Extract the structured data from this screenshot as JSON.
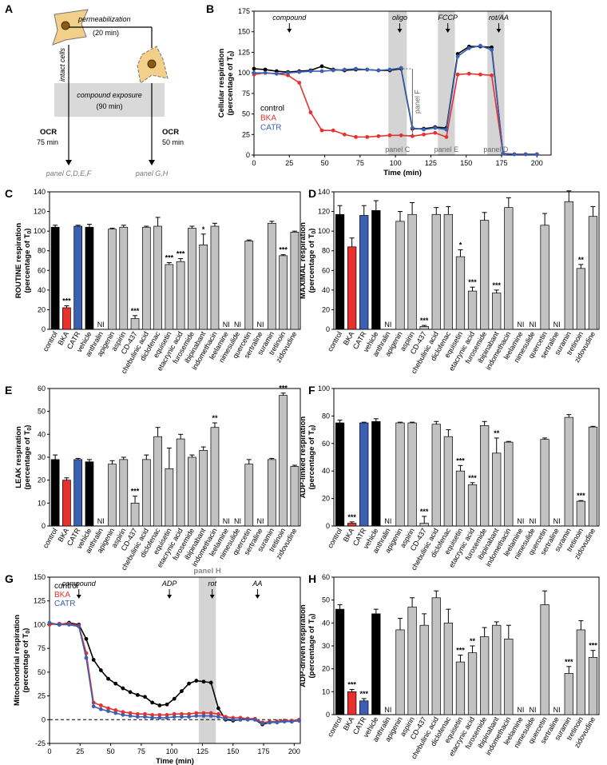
{
  "figure": {
    "panel_labels": [
      "A",
      "B",
      "C",
      "D",
      "E",
      "F",
      "G",
      "H"
    ],
    "units_sub": "0"
  },
  "diagram_A": {
    "permeabilization": "permeabilization",
    "perm_time": "(20 min)",
    "intact_cells": "intact cells",
    "compound_exposure": "compound exposure",
    "compound_time": "(90 min)",
    "ocr_left": "OCR",
    "ocr_left_time": "75 min",
    "ocr_right": "OCR",
    "ocr_right_time": "50 min",
    "panel_left": "panel C,D,E,F",
    "panel_right": "panel G,H"
  },
  "colors": {
    "control": "#000000",
    "BKA": "#e8312d",
    "CATR": "#3a5fb3",
    "vehicle": "#000000",
    "gray": "#c2c2c2",
    "shade": "#d4d4d4"
  },
  "categories": [
    "control",
    "BKA",
    "CATR",
    "vehicle",
    "anthralin",
    "apigenin",
    "aspirin",
    "CD-437",
    "chebulinic acid",
    "diclofenac",
    "equisetin",
    "etacrynic acid",
    "furosemide",
    "ibipinabant",
    "indomethacin",
    "leelamine",
    "nimesulide",
    "quercetin",
    "sertraline",
    "suramin",
    "tretinoin",
    "zidovudine"
  ],
  "chart_data": [
    {
      "panel": "B",
      "type": "line",
      "xlabel": "Time (min)",
      "ylabel": "Cellular respiration (percentage of T0)",
      "xlim": [
        0,
        210
      ],
      "ylim": [
        0,
        175
      ],
      "xticks": [
        0,
        25,
        50,
        75,
        100,
        125,
        150,
        175,
        200
      ],
      "yticks": [
        0,
        25,
        50,
        75,
        100,
        125,
        150,
        175
      ],
      "shaded": [
        [
          95,
          108
        ],
        [
          130,
          142
        ],
        [
          165,
          177
        ]
      ],
      "shade_labels": [
        "panel C",
        "panel E",
        "panel D"
      ],
      "events": [
        {
          "label": "compound",
          "x": 25
        },
        {
          "label": "oligo",
          "x": 103
        },
        {
          "label": "FCCP",
          "x": 137
        },
        {
          "label": "rot/AA",
          "x": 173
        }
      ],
      "bracket_label": "panel F",
      "dashed_y": 0,
      "legend": [
        "control",
        "BKA",
        "CATR"
      ],
      "series": [
        {
          "name": "control",
          "color": "#000000",
          "x": [
            0,
            8,
            16,
            24,
            32,
            40,
            48,
            56,
            64,
            72,
            80,
            88,
            96,
            104,
            112,
            120,
            128,
            136,
            144,
            152,
            160,
            168,
            176,
            184,
            192,
            200
          ],
          "y": [
            105,
            104,
            102,
            101,
            102,
            103,
            108,
            104,
            103,
            104,
            104,
            103,
            103,
            105,
            32,
            32,
            34,
            33,
            123,
            132,
            132,
            131,
            2,
            1,
            1,
            1
          ]
        },
        {
          "name": "BKA",
          "color": "#e8312d",
          "x": [
            0,
            8,
            16,
            24,
            32,
            40,
            48,
            56,
            64,
            72,
            80,
            88,
            96,
            104,
            112,
            120,
            128,
            136,
            144,
            152,
            160,
            168,
            176,
            184,
            192,
            200
          ],
          "y": [
            98,
            100,
            99,
            97,
            88,
            52,
            30,
            30,
            25,
            22,
            22,
            23,
            24,
            24,
            23,
            25,
            27,
            22,
            98,
            99,
            98,
            97,
            2,
            1,
            1,
            1
          ]
        },
        {
          "name": "CATR",
          "color": "#3a5fb3",
          "x": [
            0,
            8,
            16,
            24,
            32,
            40,
            48,
            56,
            64,
            72,
            80,
            88,
            96,
            104,
            112,
            120,
            128,
            136,
            144,
            152,
            160,
            168,
            176,
            184,
            192,
            200
          ],
          "y": [
            100,
            100,
            99,
            100,
            101,
            102,
            102,
            103,
            104,
            105,
            104,
            103,
            104,
            106,
            33,
            31,
            33,
            31,
            120,
            130,
            133,
            128,
            2,
            1,
            1,
            1
          ]
        }
      ]
    },
    {
      "panel": "C",
      "type": "bar",
      "ylabel": "ROUTINE respiration (percentage of T0)",
      "ylim": [
        0,
        140
      ],
      "yticks": [
        0,
        20,
        40,
        60,
        80,
        100,
        120,
        140
      ],
      "values": [
        104,
        22,
        105,
        104,
        null,
        102,
        104,
        11,
        104,
        105,
        66,
        69,
        103,
        86,
        105,
        null,
        null,
        90,
        null,
        108,
        75,
        99
      ],
      "errors": [
        2,
        2,
        1,
        3,
        0,
        1,
        2,
        3,
        1,
        9,
        2,
        3,
        2,
        11,
        3,
        0,
        0,
        1,
        0,
        2,
        1,
        1
      ],
      "stars": {
        "1": "***",
        "7": "***",
        "10": "***",
        "11": "***",
        "13": "*",
        "20": "***"
      }
    },
    {
      "panel": "D",
      "type": "bar",
      "ylabel": "MAXIMAL respiration (percentage of T0)",
      "ylim": [
        0,
        140
      ],
      "yticks": [
        0,
        20,
        40,
        60,
        80,
        100,
        120,
        140
      ],
      "values": [
        117,
        84,
        116,
        121,
        null,
        110,
        117,
        3,
        117,
        117,
        74,
        39,
        111,
        37,
        124,
        null,
        null,
        106,
        null,
        130,
        62,
        115
      ],
      "errors": [
        9,
        9,
        10,
        10,
        0,
        10,
        12,
        1,
        7,
        8,
        7,
        4,
        8,
        3,
        10,
        0,
        0,
        12,
        0,
        11,
        4,
        10
      ],
      "stars": {
        "7": "***",
        "10": "*",
        "11": "***",
        "13": "***",
        "20": "**"
      }
    },
    {
      "panel": "E",
      "type": "bar",
      "ylabel": "LEAK respiration (percentage of T0)",
      "ylim": [
        0,
        60
      ],
      "yticks": [
        0,
        10,
        20,
        30,
        40,
        50,
        60
      ],
      "values": [
        29,
        20,
        29,
        28,
        null,
        27,
        29,
        10,
        29,
        39,
        25,
        38,
        30,
        33,
        43,
        null,
        null,
        27,
        null,
        29,
        57,
        26
      ],
      "errors": [
        2,
        1,
        0.5,
        1,
        0,
        1.5,
        1,
        3,
        2,
        4,
        9,
        2,
        1,
        1.5,
        2,
        0,
        0,
        2,
        0,
        0.5,
        1,
        0.5
      ],
      "stars": {
        "7": "***",
        "14": "**",
        "20": "***"
      }
    },
    {
      "panel": "F",
      "type": "bar",
      "ylabel": "ADP-linked respiration (percentage of T0)",
      "ylim": [
        0,
        100
      ],
      "yticks": [
        0,
        20,
        40,
        60,
        80,
        100
      ],
      "values": [
        75,
        2,
        75,
        76,
        null,
        75,
        75,
        2,
        74,
        65,
        40,
        30,
        73,
        53,
        61,
        null,
        null,
        63,
        null,
        79,
        18,
        72
      ],
      "errors": [
        2,
        1,
        0.5,
        2,
        0,
        0.5,
        0.5,
        5,
        2,
        5,
        4,
        1.5,
        3,
        11,
        0.5,
        0,
        0,
        1,
        0,
        2,
        0.5,
        0.5
      ],
      "stars": {
        "1": "***",
        "7": "***",
        "10": "***",
        "11": "***",
        "13": "**",
        "20": "***"
      }
    },
    {
      "panel": "G",
      "type": "line",
      "xlabel": "Time (min)",
      "ylabel": "Mitochondrial respiration (percentage of T0)",
      "xlim": [
        0,
        205
      ],
      "ylim": [
        -25,
        150
      ],
      "xticks": [
        0,
        25,
        50,
        75,
        100,
        125,
        150,
        175,
        200
      ],
      "yticks": [
        -25,
        0,
        25,
        50,
        75,
        100,
        125,
        150
      ],
      "shaded": [
        [
          122,
          136
        ]
      ],
      "shade_labels": [
        "panel H"
      ],
      "events": [
        {
          "label": "compound",
          "x": 24
        },
        {
          "label": "ADP",
          "x": 98
        },
        {
          "label": "rot",
          "x": 133
        },
        {
          "label": "AA",
          "x": 170
        }
      ],
      "dashed_y": 0,
      "legend": [
        "control",
        "BKA",
        "CATR"
      ],
      "series": [
        {
          "name": "control",
          "color": "#000000",
          "x": [
            0,
            8,
            16,
            24,
            30,
            36,
            42,
            48,
            54,
            60,
            66,
            72,
            78,
            84,
            90,
            96,
            102,
            108,
            114,
            120,
            126,
            132,
            138,
            144,
            150,
            156,
            162,
            168,
            174,
            180,
            186,
            192,
            198,
            204
          ],
          "y": [
            101,
            100,
            102,
            100,
            85,
            63,
            52,
            43,
            38,
            33,
            29,
            26,
            24,
            18,
            15,
            16,
            22,
            30,
            38,
            41,
            40,
            39,
            12,
            0,
            -1,
            0,
            1,
            0,
            -5,
            -3,
            -2,
            -1,
            -2,
            -1
          ]
        },
        {
          "name": "BKA",
          "color": "#e8312d",
          "x": [
            0,
            8,
            16,
            24,
            30,
            36,
            42,
            48,
            54,
            60,
            66,
            72,
            78,
            84,
            90,
            96,
            102,
            108,
            114,
            120,
            126,
            132,
            138,
            144,
            150,
            156,
            162,
            168,
            174,
            180,
            186,
            192,
            198,
            204
          ],
          "y": [
            100,
            101,
            101,
            99,
            70,
            18,
            15,
            12,
            10,
            8,
            7,
            6,
            6,
            5,
            5,
            5,
            6,
            6,
            6,
            7,
            7,
            7,
            6,
            3,
            2,
            2,
            1,
            1,
            -3,
            -2,
            -2,
            -1,
            -1,
            0
          ]
        },
        {
          "name": "CATR",
          "color": "#3a5fb3",
          "x": [
            0,
            8,
            16,
            24,
            30,
            36,
            42,
            48,
            54,
            60,
            66,
            72,
            78,
            84,
            90,
            96,
            102,
            108,
            114,
            120,
            126,
            132,
            138,
            144,
            150,
            156,
            162,
            168,
            174,
            180,
            186,
            192,
            198,
            204
          ],
          "y": [
            102,
            100,
            100,
            98,
            65,
            14,
            11,
            9,
            7,
            5,
            4,
            3,
            3,
            2,
            2,
            2,
            3,
            3,
            3,
            4,
            4,
            4,
            3,
            1,
            0,
            0,
            0,
            0,
            -4,
            -3,
            -3,
            -2,
            -2,
            -1
          ]
        }
      ]
    },
    {
      "panel": "H",
      "type": "bar",
      "ylabel": "ADP-driven respiration (percentage of T0)",
      "ylim": [
        0,
        60
      ],
      "yticks": [
        0,
        10,
        20,
        30,
        40,
        50,
        60
      ],
      "values": [
        46,
        10,
        6,
        44,
        null,
        37,
        47,
        39,
        51,
        40,
        23,
        27,
        34,
        39,
        33,
        null,
        null,
        48,
        null,
        18,
        37,
        25
      ],
      "errors": [
        2,
        1,
        1,
        2,
        0,
        5,
        4,
        5,
        3,
        6,
        3,
        3,
        4,
        1.5,
        6,
        0,
        0,
        6,
        0,
        3,
        4,
        3
      ],
      "stars": {
        "1": "***",
        "2": "***",
        "10": "***",
        "11": "**",
        "19": "***",
        "21": "***"
      }
    }
  ],
  "ni_label": "NI"
}
